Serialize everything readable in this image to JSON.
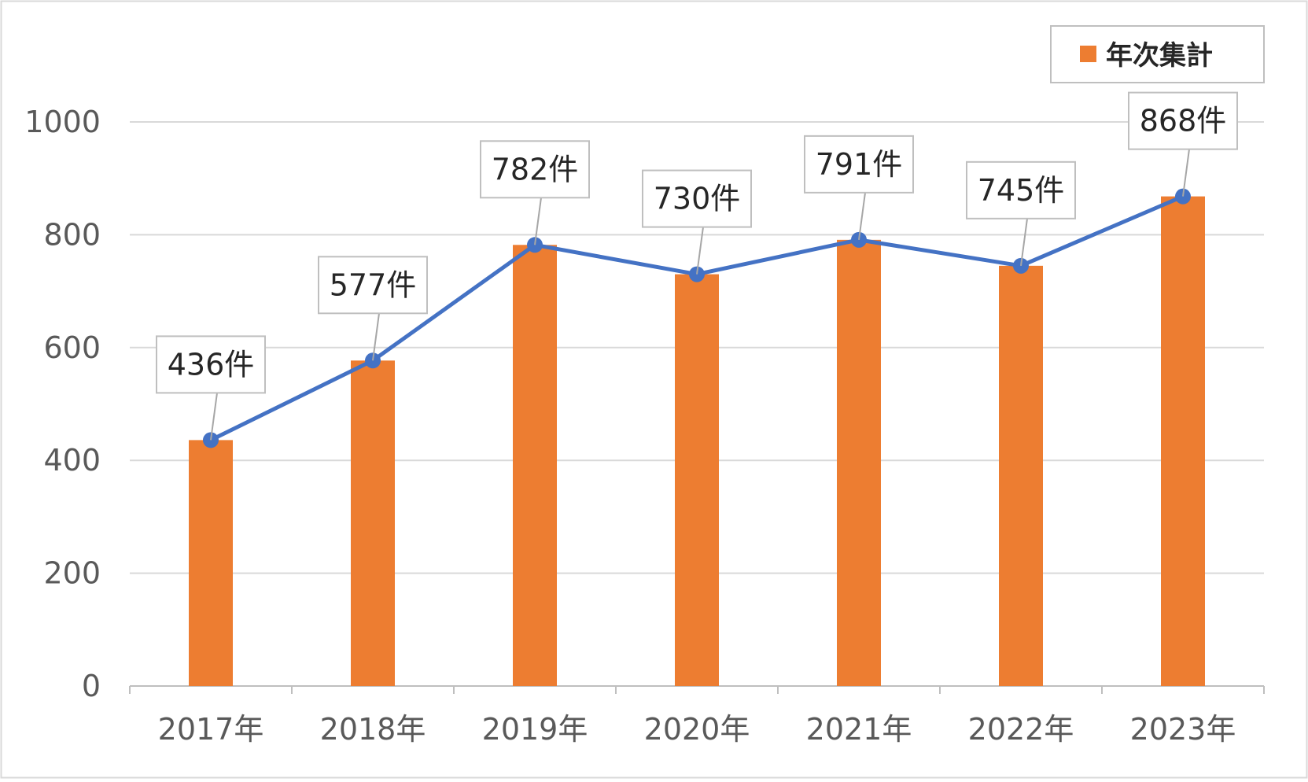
{
  "chart_data": {
    "type": "bar",
    "categories": [
      "2017年",
      "2018年",
      "2019年",
      "2020年",
      "2021年",
      "2022年",
      "2023年"
    ],
    "series": [
      {
        "name": "年次集計",
        "type": "bar",
        "values": [
          436,
          577,
          782,
          730,
          791,
          745,
          868
        ],
        "color": "#ED7D31"
      },
      {
        "type": "line",
        "values": [
          436,
          577,
          782,
          730,
          791,
          745,
          868
        ],
        "color": "#4472C4"
      }
    ],
    "data_labels": [
      "436件",
      "577件",
      "782件",
      "730件",
      "791件",
      "745件",
      "868件"
    ],
    "y_ticks": [
      "0",
      "200",
      "400",
      "600",
      "800",
      "1000"
    ],
    "ylim": [
      0,
      1000
    ],
    "grid": true,
    "legend_position": "top-right",
    "legend": [
      {
        "label": "年次集計",
        "color": "#ED7D31"
      }
    ]
  }
}
